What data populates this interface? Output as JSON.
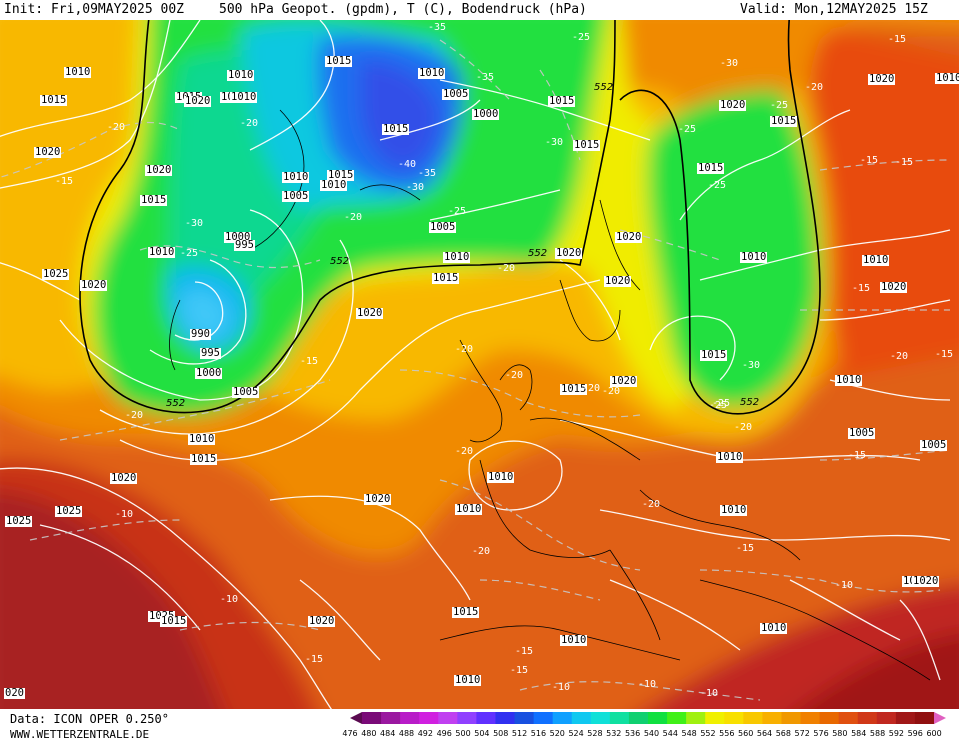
{
  "header": {
    "init": "Init: Fri,09MAY2025 00Z",
    "title": "500 hPa Geopot. (gpdm), T (C), Bodendruck (hPa)",
    "valid": "Valid: Mon,12MAY2025 15Z"
  },
  "footer": {
    "source": "Data: ICON OPER 0.250°",
    "url": "WWW.WETTERZENTRALE.DE"
  },
  "colorbar": {
    "labels": [
      "476",
      "480",
      "484",
      "488",
      "492",
      "496",
      "500",
      "504",
      "508",
      "512",
      "516",
      "520",
      "524",
      "528",
      "532",
      "536",
      "540",
      "544",
      "548",
      "552",
      "556",
      "560",
      "564",
      "568",
      "572",
      "576",
      "580",
      "584",
      "588",
      "592",
      "596",
      "600"
    ],
    "colors": [
      "#5a0a50",
      "#7a0a78",
      "#9a18a0",
      "#b81cc8",
      "#d020e0",
      "#c040f0",
      "#9040ff",
      "#6030ff",
      "#3030f0",
      "#1850e0",
      "#1070ff",
      "#10a0ff",
      "#10c8f0",
      "#10e0d8",
      "#10e0a0",
      "#10d070",
      "#10e040",
      "#40f018",
      "#a0f010",
      "#f0f000",
      "#f8e000",
      "#f8c800",
      "#f8b000",
      "#f09800",
      "#f08000",
      "#e86800",
      "#e05010",
      "#d03818",
      "#c02820",
      "#a01818",
      "#901010",
      "#e060c0"
    ]
  },
  "map": {
    "isobar_labels": [
      {
        "text": "1010"
      },
      {
        "text": "1015"
      },
      {
        "text": "1020"
      },
      {
        "text": "1015"
      },
      {
        "text": "1020"
      },
      {
        "text": "1025"
      },
      {
        "text": "1010"
      },
      {
        "text": "1020"
      },
      {
        "text": "1000"
      },
      {
        "text": "995"
      },
      {
        "text": "990"
      },
      {
        "text": "995"
      },
      {
        "text": "1000"
      },
      {
        "text": "1005"
      },
      {
        "text": "1010"
      },
      {
        "text": "1015"
      },
      {
        "text": "1020"
      },
      {
        "text": "1025"
      },
      {
        "text": "1025"
      },
      {
        "text": "1020"
      },
      {
        "text": "1020"
      },
      {
        "text": "1020"
      },
      {
        "text": "1015"
      },
      {
        "text": "1020"
      },
      {
        "text": "1010"
      },
      {
        "text": "1015"
      },
      {
        "text": "1010"
      },
      {
        "text": "1015"
      },
      {
        "text": "1005"
      },
      {
        "text": "1000"
      },
      {
        "text": "1010"
      },
      {
        "text": "1005"
      },
      {
        "text": "1005"
      },
      {
        "text": "1015"
      },
      {
        "text": "1010"
      },
      {
        "text": "1015"
      },
      {
        "text": "1020"
      },
      {
        "text": "1010"
      },
      {
        "text": "1015"
      },
      {
        "text": "1020"
      },
      {
        "text": "1020"
      },
      {
        "text": "1015"
      },
      {
        "text": "1020"
      },
      {
        "text": "1015"
      },
      {
        "text": "1010"
      },
      {
        "text": "1015"
      },
      {
        "text": "1020"
      },
      {
        "text": "1010"
      },
      {
        "text": "1015"
      },
      {
        "text": "1010"
      },
      {
        "text": "1010"
      },
      {
        "text": "1010"
      },
      {
        "text": "1005"
      },
      {
        "text": "1005"
      },
      {
        "text": "1010"
      },
      {
        "text": "1010"
      },
      {
        "text": "1010"
      },
      {
        "text": "1015"
      },
      {
        "text": "1010"
      },
      {
        "text": "1010"
      },
      {
        "text": "1010"
      },
      {
        "text": "1015"
      },
      {
        "text": "1020"
      },
      {
        "text": "1010"
      },
      {
        "text": "1010"
      },
      {
        "text": "1015"
      },
      {
        "text": "1020"
      },
      {
        "text": "1025"
      },
      {
        "text": "1015"
      },
      {
        "text": "1020"
      }
    ],
    "temp_labels": [
      {
        "text": "-35"
      },
      {
        "text": "-25"
      },
      {
        "text": "-30"
      },
      {
        "text": "-20"
      },
      {
        "text": "-15"
      },
      {
        "text": "-15"
      },
      {
        "text": "-35"
      },
      {
        "text": "-30"
      },
      {
        "text": "-40"
      },
      {
        "text": "-35"
      },
      {
        "text": "-30"
      },
      {
        "text": "-25"
      },
      {
        "text": "-25"
      },
      {
        "text": "-20"
      },
      {
        "text": "-30"
      },
      {
        "text": "-25"
      },
      {
        "text": "-20"
      },
      {
        "text": "-15"
      },
      {
        "text": "-20"
      },
      {
        "text": "-20"
      },
      {
        "text": "-20"
      },
      {
        "text": "-20"
      },
      {
        "text": "-25"
      },
      {
        "text": "-20"
      },
      {
        "text": "-15"
      },
      {
        "text": "-20"
      },
      {
        "text": "-15"
      },
      {
        "text": "-10"
      },
      {
        "text": "-10"
      },
      {
        "text": "-15"
      },
      {
        "text": "-20"
      },
      {
        "text": "-15"
      },
      {
        "text": "-10"
      },
      {
        "text": "-10"
      },
      {
        "text": "-10"
      },
      {
        "text": "-15"
      },
      {
        "text": "-20"
      },
      {
        "text": "-25"
      },
      {
        "text": "-30"
      },
      {
        "text": "-20"
      },
      {
        "text": "-25"
      },
      {
        "text": "-15"
      },
      {
        "text": "-15"
      },
      {
        "text": "-20"
      },
      {
        "text": "-15"
      },
      {
        "text": "-20"
      },
      {
        "text": "-10"
      },
      {
        "text": "-15"
      },
      {
        "text": "-20"
      },
      {
        "text": "-25"
      }
    ],
    "geopot_labels": [
      {
        "text": "552"
      },
      {
        "text": "552"
      },
      {
        "text": "552"
      },
      {
        "text": "552"
      },
      {
        "text": "552"
      }
    ],
    "edge_labels": [
      {
        "text": "10"
      },
      {
        "text": "020"
      },
      {
        "text": "1005"
      }
    ]
  }
}
